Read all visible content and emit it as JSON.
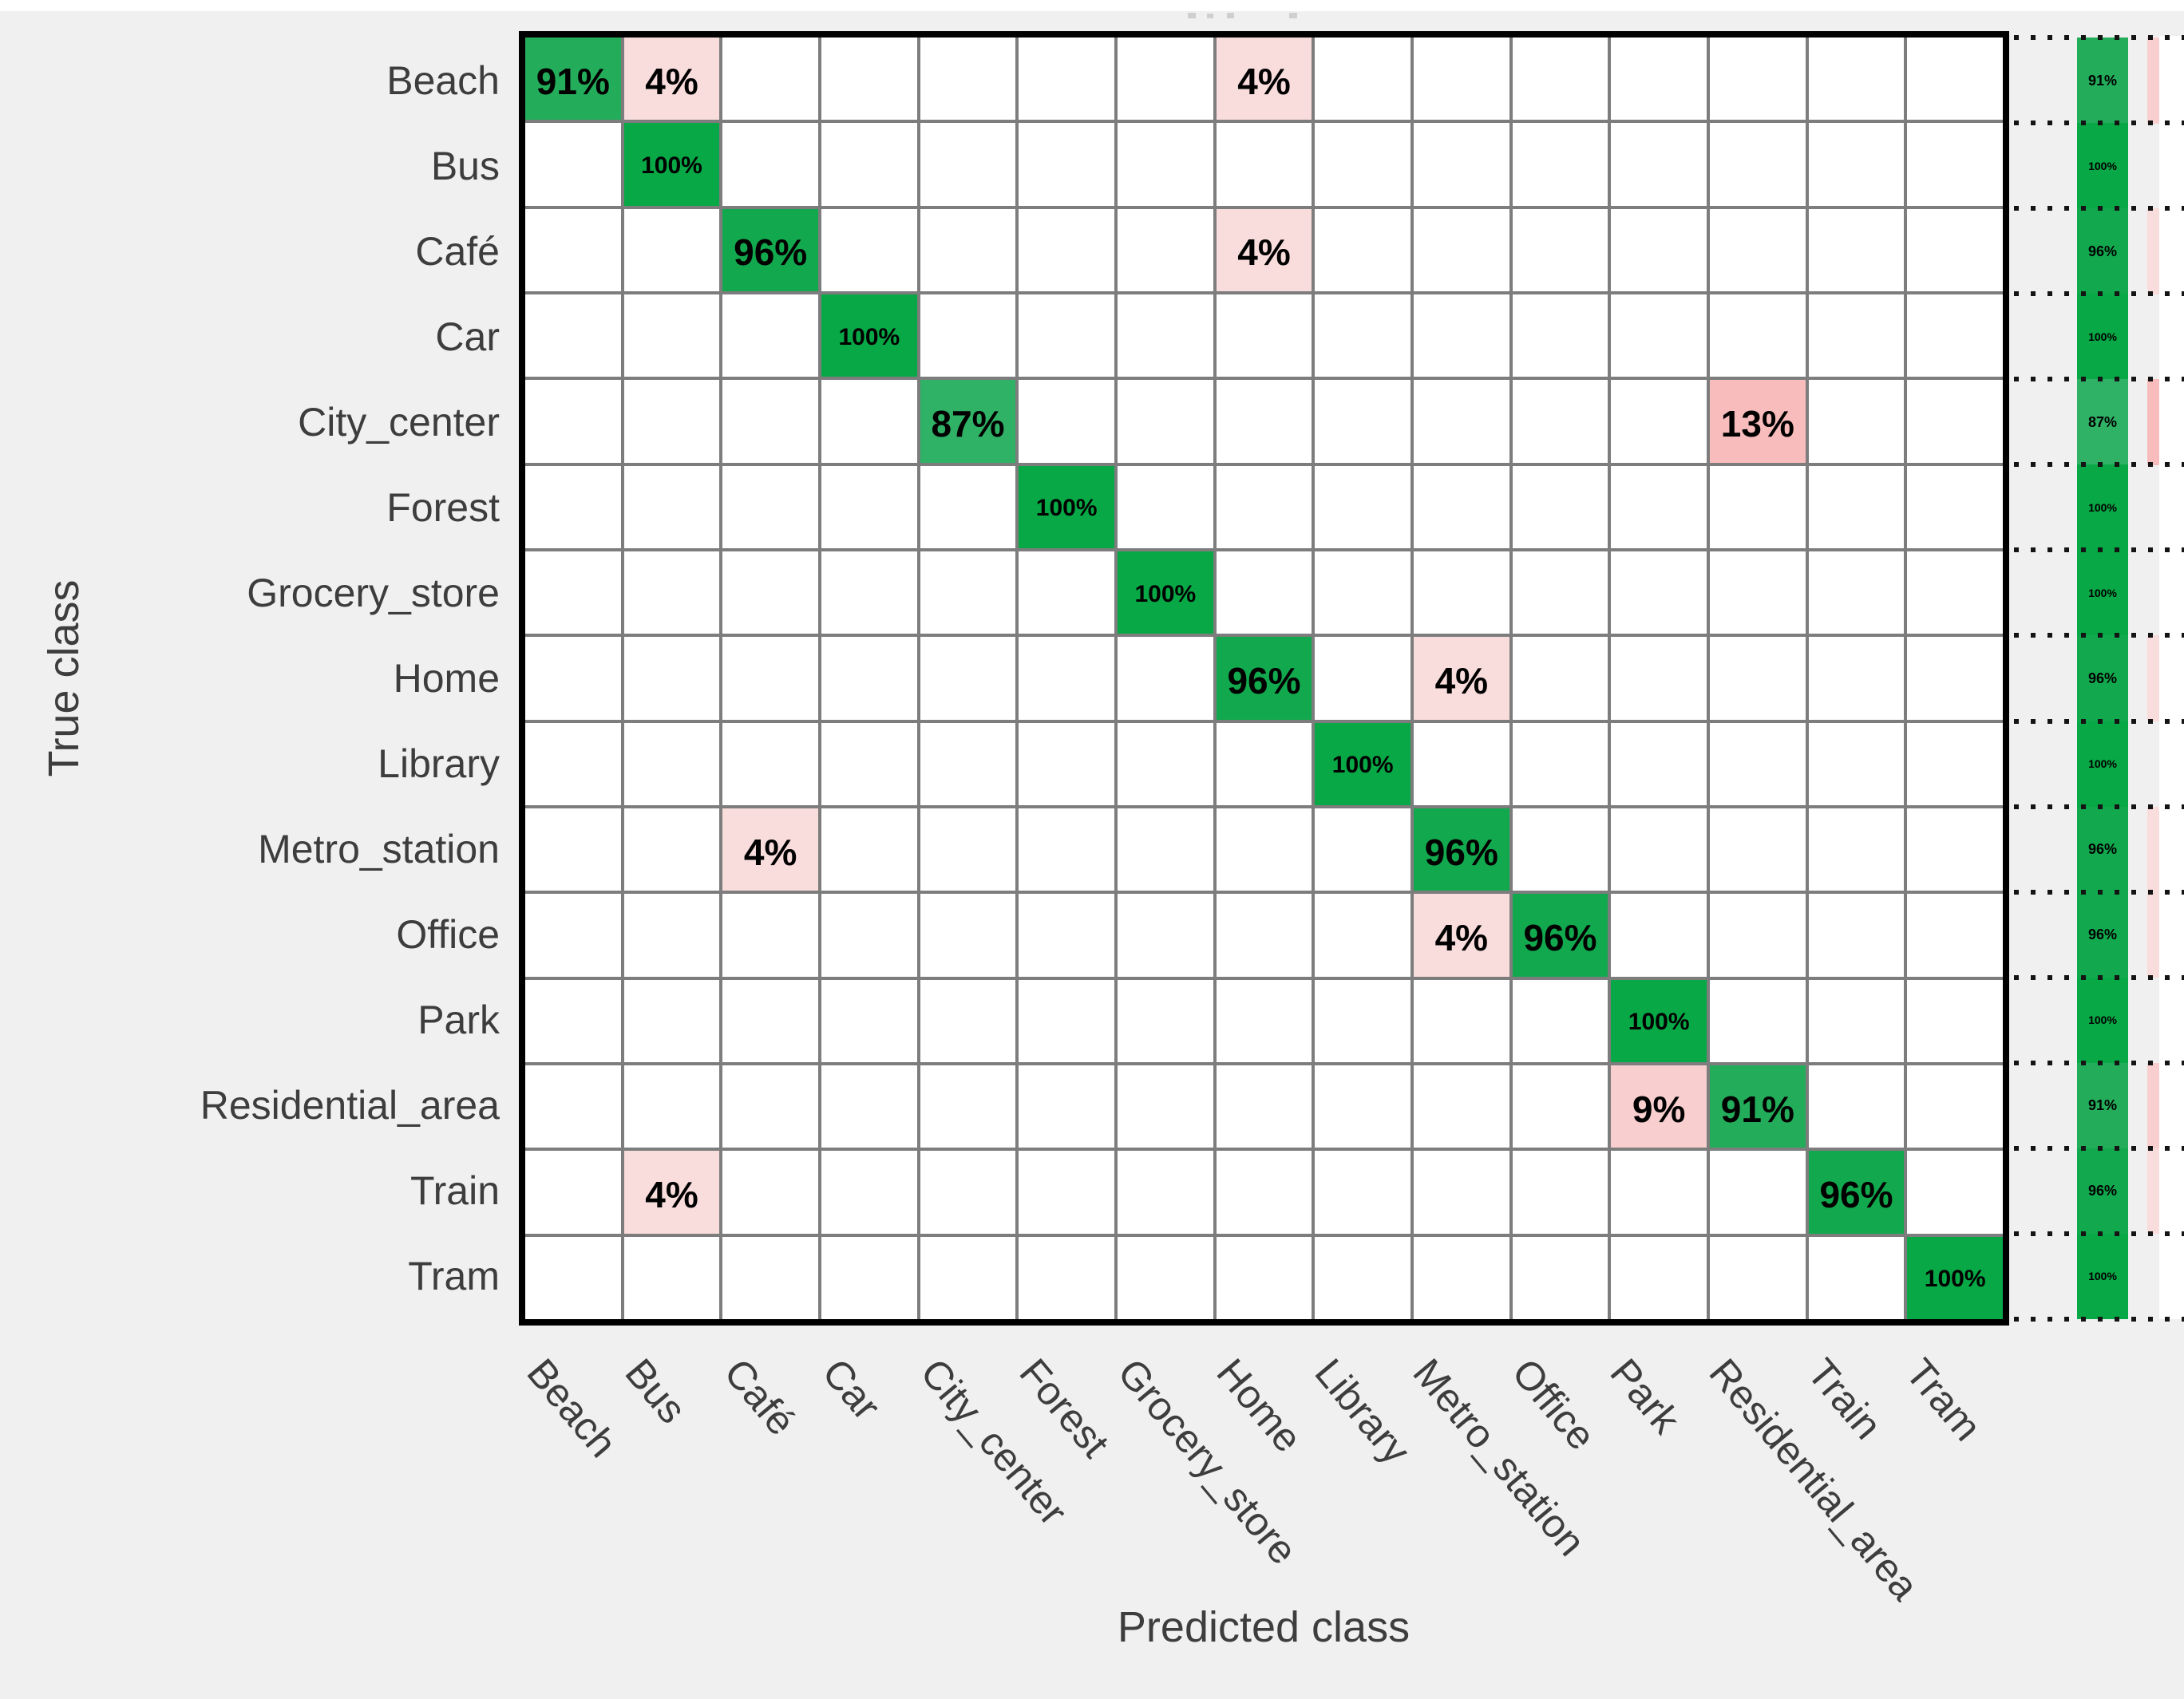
{
  "figure": {
    "background": "#f0f0f0",
    "x_axis_title": "Predicted class",
    "y_axis_title": "True class"
  },
  "chart_data": {
    "type": "heatmap",
    "subtype": "confusion-matrix",
    "title": "",
    "xlabel": "Predicted class",
    "ylabel": "True class",
    "value_unit": "%",
    "classes": [
      "Beach",
      "Bus",
      "Café",
      "Car",
      "City_center",
      "Forest",
      "Grocery_store",
      "Home",
      "Library",
      "Metro_station",
      "Office",
      "Park",
      "Residential_area",
      "Train",
      "Tram"
    ],
    "cells": [
      {
        "true": "Beach",
        "predicted": "Beach",
        "value": 91
      },
      {
        "true": "Beach",
        "predicted": "Bus",
        "value": 4
      },
      {
        "true": "Beach",
        "predicted": "Home",
        "value": 4
      },
      {
        "true": "Bus",
        "predicted": "Bus",
        "value": 100
      },
      {
        "true": "Café",
        "predicted": "Café",
        "value": 96
      },
      {
        "true": "Café",
        "predicted": "Home",
        "value": 4
      },
      {
        "true": "Car",
        "predicted": "Car",
        "value": 100
      },
      {
        "true": "City_center",
        "predicted": "City_center",
        "value": 87
      },
      {
        "true": "City_center",
        "predicted": "Residential_area",
        "value": 13
      },
      {
        "true": "Forest",
        "predicted": "Forest",
        "value": 100
      },
      {
        "true": "Grocery_store",
        "predicted": "Grocery_store",
        "value": 100
      },
      {
        "true": "Home",
        "predicted": "Home",
        "value": 96
      },
      {
        "true": "Home",
        "predicted": "Metro_station",
        "value": 4
      },
      {
        "true": "Library",
        "predicted": "Library",
        "value": 100
      },
      {
        "true": "Metro_station",
        "predicted": "Café",
        "value": 4
      },
      {
        "true": "Metro_station",
        "predicted": "Metro_station",
        "value": 96
      },
      {
        "true": "Office",
        "predicted": "Metro_station",
        "value": 4
      },
      {
        "true": "Office",
        "predicted": "Office",
        "value": 96
      },
      {
        "true": "Park",
        "predicted": "Park",
        "value": 100
      },
      {
        "true": "Residential_area",
        "predicted": "Park",
        "value": 9
      },
      {
        "true": "Residential_area",
        "predicted": "Residential_area",
        "value": 91
      },
      {
        "true": "Train",
        "predicted": "Bus",
        "value": 4
      },
      {
        "true": "Train",
        "predicted": "Train",
        "value": 96
      },
      {
        "true": "Tram",
        "predicted": "Tram",
        "value": 100
      }
    ],
    "row_summary": {
      "correct_pct": [
        91,
        100,
        96,
        100,
        87,
        100,
        100,
        96,
        100,
        96,
        96,
        100,
        91,
        96,
        100
      ],
      "incorrect_pct": [
        9,
        0,
        4,
        0,
        13,
        0,
        0,
        4,
        0,
        4,
        4,
        0,
        9,
        4,
        0
      ]
    }
  },
  "colors": {
    "background": "#f0f0f0",
    "cell_background": "#ffffff",
    "grid_line": "#7d7d7d",
    "matrix_border": "#000000",
    "cell_text": "#000000",
    "axis_text": "#3d3d3d",
    "green_by_value": {
      "87": "#2fb166",
      "91": "#23ad5a",
      "96": "#12a94e",
      "100": "#07a845"
    },
    "pink_by_value": {
      "4": "#f9dcdc",
      "9": "#f8cece",
      "13": "#f9bcbc"
    }
  }
}
